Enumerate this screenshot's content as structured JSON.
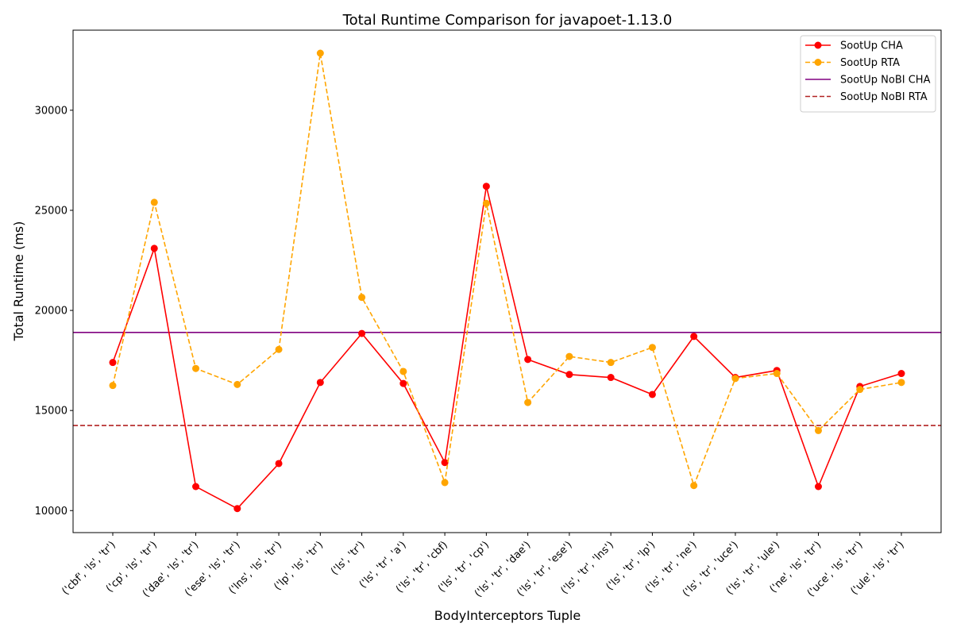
{
  "chart_data": {
    "type": "line",
    "title": "Total Runtime Comparison for javapoet-1.13.0",
    "xlabel": "BodyInterceptors Tuple",
    "ylabel": "Total Runtime (ms)",
    "ylim": [
      8900,
      34000
    ],
    "yticks": [
      10000,
      15000,
      20000,
      25000,
      30000
    ],
    "grid": false,
    "legend_position": "top-right",
    "categories": [
      "('cbf', 'ls', 'tr')",
      "('cp', 'ls', 'tr')",
      "('dae', 'ls', 'tr')",
      "('ese', 'ls', 'tr')",
      "('lns', 'ls', 'tr')",
      "('lp', 'ls', 'tr')",
      "('ls', 'tr')",
      "('ls', 'tr', 'a')",
      "('ls', 'tr', 'cbf)",
      "('ls', 'tr', 'cp')",
      "('ls', 'tr', 'dae')",
      "('ls', 'tr', 'ese')",
      "('ls', 'tr', 'lns')",
      "('ls', 'tr', 'lp')",
      "('ls', 'tr', 'ne')",
      "('ls', 'tr', 'uce')",
      "('ls', 'tr', 'ule')",
      "('ne', 'ls', 'tr')",
      "('uce', 'ls', 'tr')",
      "('ule', 'ls', 'tr')"
    ],
    "series": [
      {
        "name": "SootUp CHA",
        "color": "#ff0000",
        "style": "solid",
        "marker": "circle",
        "values": [
          17400,
          23100,
          11200,
          10100,
          12350,
          16400,
          18850,
          16350,
          12400,
          26200,
          17550,
          16800,
          16650,
          15800,
          18700,
          16650,
          17000,
          11200,
          16200,
          16850
        ]
      },
      {
        "name": "SootUp RTA",
        "color": "#ffa500",
        "style": "dashed",
        "marker": "circle",
        "values": [
          16250,
          25400,
          17100,
          16300,
          18050,
          32850,
          20650,
          16950,
          11400,
          25350,
          15400,
          17700,
          17400,
          18150,
          11250,
          16600,
          16850,
          14000,
          16050,
          16400
        ]
      }
    ],
    "reference_lines": [
      {
        "name": "SootUp NoBI CHA",
        "color": "#800080",
        "style": "solid",
        "value": 18900
      },
      {
        "name": "SootUp NoBI RTA",
        "color": "#b22222",
        "style": "dashed",
        "value": 14250
      }
    ]
  }
}
